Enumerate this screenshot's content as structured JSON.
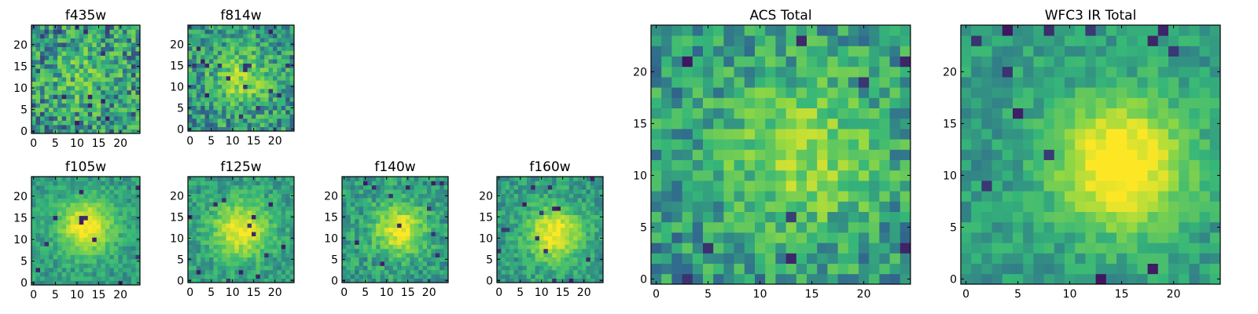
{
  "chart_data": [
    {
      "type": "heatmap",
      "title": "f435w",
      "xlim": [
        0,
        24
      ],
      "ylim": [
        0,
        24
      ],
      "xticks": [
        "0",
        "5",
        "10",
        "15",
        "20"
      ],
      "yticks": [
        "0",
        "5",
        "10",
        "15",
        "20"
      ],
      "center": [
        12,
        13
      ],
      "peak": 0.18,
      "sigma": 5,
      "noise": 0.55,
      "seed": 11
    },
    {
      "type": "heatmap",
      "title": "f814w",
      "xlim": [
        0,
        24
      ],
      "ylim": [
        0,
        24
      ],
      "xticks": [
        "0",
        "5",
        "10",
        "15",
        "20"
      ],
      "yticks": [
        "0",
        "5",
        "10",
        "15",
        "20"
      ],
      "center": [
        12,
        12
      ],
      "peak": 0.35,
      "sigma": 4.5,
      "noise": 0.45,
      "seed": 23
    },
    {
      "type": "heatmap",
      "title": "f105w",
      "xlim": [
        0,
        24
      ],
      "ylim": [
        0,
        24
      ],
      "xticks": [
        "0",
        "5",
        "10",
        "15",
        "20"
      ],
      "yticks": [
        "0",
        "5",
        "10",
        "15",
        "20"
      ],
      "center": [
        12,
        13
      ],
      "peak": 0.6,
      "sigma": 4.2,
      "noise": 0.22,
      "seed": 37
    },
    {
      "type": "heatmap",
      "title": "f125w",
      "xlim": [
        0,
        24
      ],
      "ylim": [
        0,
        24
      ],
      "xticks": [
        "0",
        "5",
        "10",
        "15",
        "20"
      ],
      "yticks": [
        "0",
        "5",
        "10",
        "15",
        "20"
      ],
      "center": [
        12,
        12
      ],
      "peak": 0.55,
      "sigma": 4.5,
      "noise": 0.25,
      "seed": 41
    },
    {
      "type": "heatmap",
      "title": "f140w",
      "xlim": [
        0,
        24
      ],
      "ylim": [
        0,
        24
      ],
      "xticks": [
        "0",
        "5",
        "10",
        "15",
        "20"
      ],
      "yticks": [
        "0",
        "5",
        "10",
        "15",
        "20"
      ],
      "center": [
        13,
        12
      ],
      "peak": 0.55,
      "sigma": 4,
      "noise": 0.3,
      "seed": 53
    },
    {
      "type": "heatmap",
      "title": "f160w",
      "xlim": [
        0,
        24
      ],
      "ylim": [
        0,
        24
      ],
      "xticks": [
        "0",
        "5",
        "10",
        "15",
        "20"
      ],
      "yticks": [
        "0",
        "5",
        "10",
        "15",
        "20"
      ],
      "center": [
        13,
        11
      ],
      "peak": 0.6,
      "sigma": 4.2,
      "noise": 0.25,
      "seed": 67
    },
    {
      "type": "heatmap",
      "title": "ACS Total",
      "xlim": [
        0,
        24
      ],
      "ylim": [
        0,
        24
      ],
      "xticks": [
        "0",
        "5",
        "10",
        "15",
        "20"
      ],
      "yticks": [
        "0",
        "5",
        "10",
        "15",
        "20"
      ],
      "center": [
        14,
        12
      ],
      "peak": 0.35,
      "sigma": 5,
      "noise": 0.4,
      "seed": 79
    },
    {
      "type": "heatmap",
      "title": "WFC3 IR Total",
      "xlim": [
        0,
        24
      ],
      "ylim": [
        0,
        24
      ],
      "xticks": [
        "0",
        "5",
        "10",
        "15",
        "20"
      ],
      "yticks": [
        "0",
        "5",
        "10",
        "15",
        "20"
      ],
      "center": [
        15,
        11
      ],
      "peak": 0.7,
      "sigma": 4.2,
      "noise": 0.22,
      "seed": 97
    }
  ],
  "colormap": [
    "#440154",
    "#31688e",
    "#35b779",
    "#8fd744",
    "#fde725"
  ]
}
